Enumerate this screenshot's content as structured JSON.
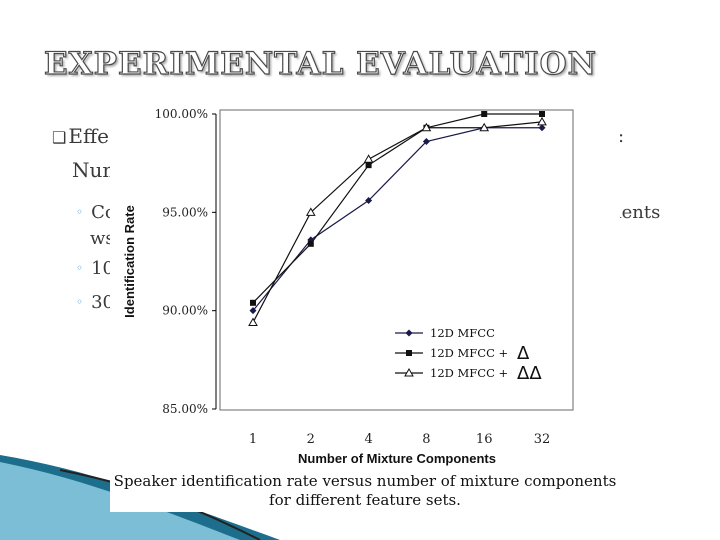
{
  "slide": {
    "title": "EXPERIMENTAL EVALUATION",
    "bullet_marker": "❑",
    "bullet1_start": "Effe",
    "bullet1_right": ":",
    "bullet1_line2": "Num",
    "sub_marker": "◦",
    "sub1_start": "Co",
    "sub1_right": "icients",
    "sub1_line2": "ws",
    "sub2_start": "10",
    "sub3_start": "30"
  },
  "caption": {
    "line1": "Speaker identification rate versus number of mixture components",
    "line2": "for different feature sets."
  },
  "colors": {
    "series_dark": "#1a1a4a",
    "series_black": "#111111",
    "axis": "#000000",
    "frame": "#6a6a6a",
    "teal_dark": "#1d6e8c",
    "teal_light": "#8ccde3"
  },
  "chart_data": {
    "type": "line",
    "ylabel": "Identification Rate",
    "xlabel": "Number of Mixture Components",
    "categories": [
      "1",
      "2",
      "4",
      "8",
      "16",
      "32"
    ],
    "y_ticks": [
      "85.00%",
      "90.00%",
      "95.00%",
      "100.00%"
    ],
    "y_tick_values": [
      85,
      90,
      95,
      100
    ],
    "ylim": [
      85,
      100
    ],
    "legend_position": "lower-right",
    "series": [
      {
        "name": "12D MFCC",
        "legend_suffix": "",
        "marker": "diamond",
        "values": [
          90.0,
          93.6,
          95.6,
          98.6,
          99.3,
          99.3
        ]
      },
      {
        "name": "12D MFCC +",
        "legend_suffix": "Δ",
        "marker": "square",
        "values": [
          90.4,
          93.4,
          97.4,
          99.3,
          100.0,
          100.0
        ]
      },
      {
        "name": "12D MFCC +",
        "legend_suffix": "ΔΔ",
        "marker": "triangle",
        "values": [
          89.4,
          95.0,
          97.7,
          99.3,
          99.3,
          99.6
        ]
      }
    ]
  }
}
